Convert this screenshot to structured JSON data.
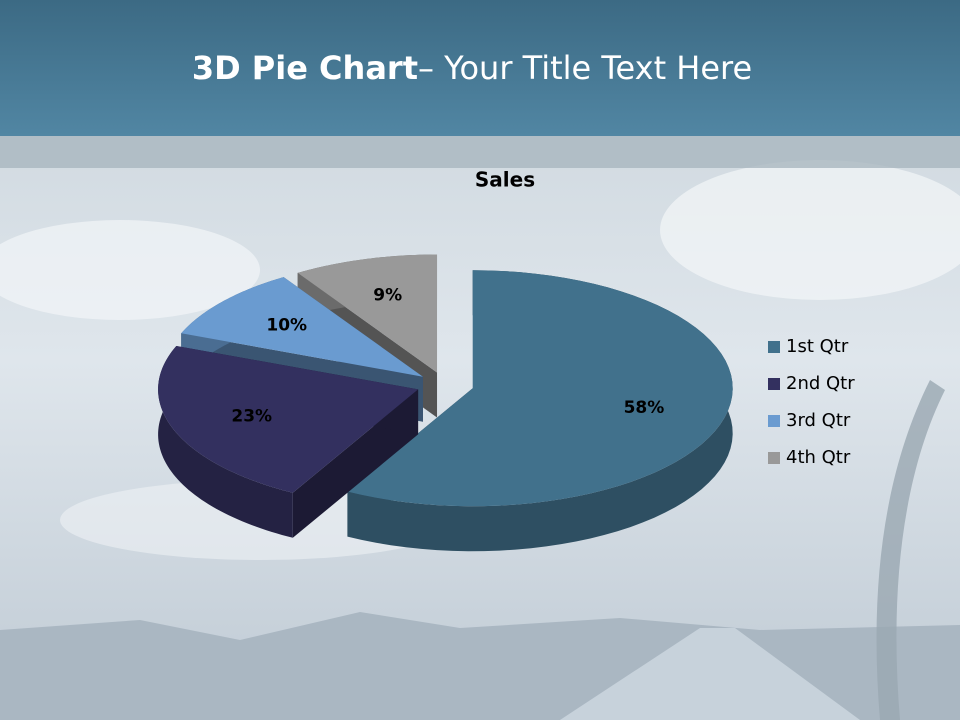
{
  "slide": {
    "title_bold": "3D Pie Chart",
    "title_rest": "– Your Title Text Here"
  },
  "chart_data": {
    "type": "pie",
    "title": "Sales",
    "categories": [
      "1st Qtr",
      "2nd Qtr",
      "3rd Qtr",
      "4th Qtr"
    ],
    "values": [
      58,
      23,
      10,
      9
    ],
    "value_labels": [
      "58%",
      "23%",
      "10%",
      "9%"
    ],
    "colors": [
      "#41718c",
      "#33305f",
      "#6a9bd0",
      "#999999"
    ],
    "legend": "right",
    "three_d": true
  }
}
